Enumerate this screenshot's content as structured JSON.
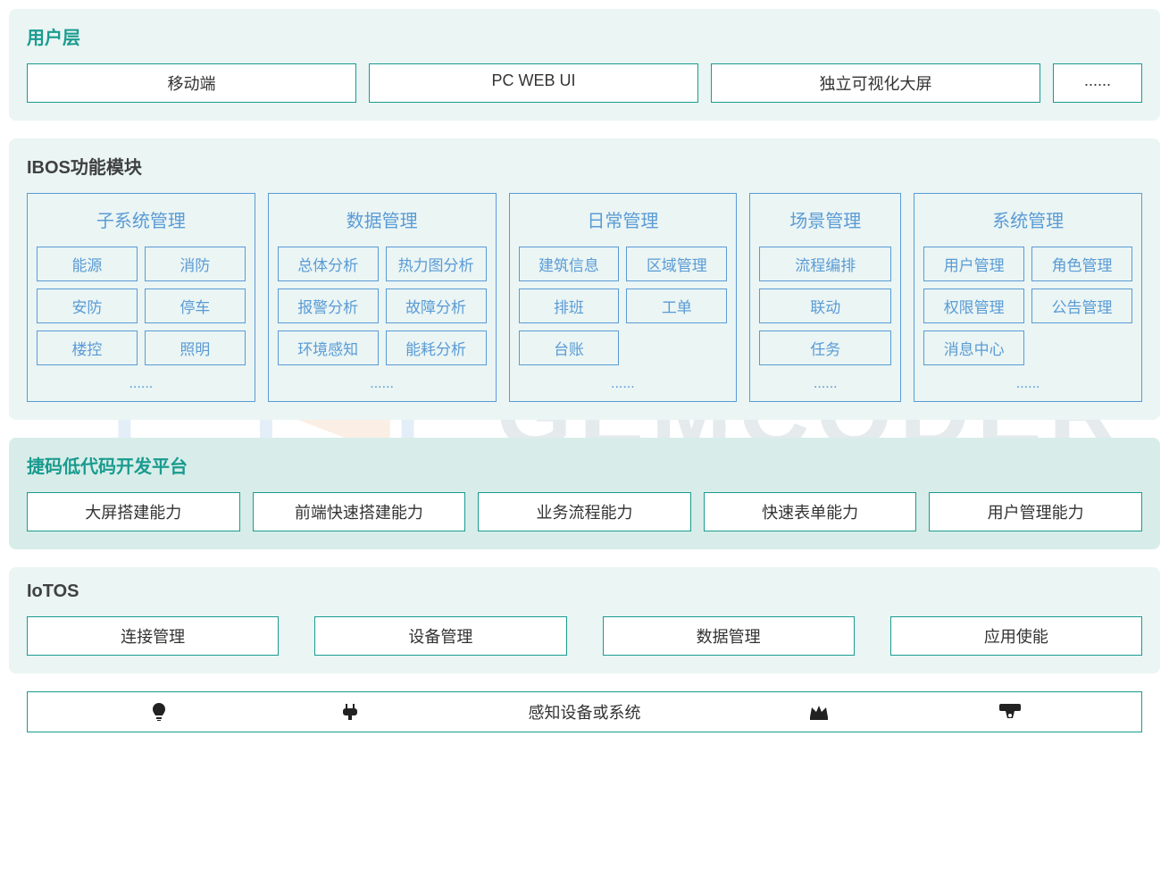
{
  "colors": {
    "layer_bg_light": "#eaf5f4",
    "layer_bg_green": "#d8ede9",
    "accent": "#1a9b8f",
    "border_blue": "#5b9bd5",
    "text_dark": "#333333",
    "title_green": "#1a9b8f",
    "title_dark": "#404040",
    "watermark_blue": "#4a90d9",
    "watermark_orange": "#e8833a"
  },
  "layers": {
    "user": {
      "title": "用户层",
      "title_color": "#1a9b8f",
      "bg": "#eaf5f4",
      "border": "#1a9b8f",
      "items": [
        "移动端",
        "PC WEB UI",
        "独立可视化大屏",
        "......"
      ]
    },
    "ibos": {
      "title": "IBOS功能模块",
      "title_color": "#404040",
      "bg": "#eaf5f4",
      "border": "#5b9bd5",
      "modules": [
        {
          "title": "子系统管理",
          "rows": [
            [
              "能源",
              "消防"
            ],
            [
              "安防",
              "停车"
            ],
            [
              "楼控",
              "照明"
            ]
          ],
          "ellipsis": "......"
        },
        {
          "title": "数据管理",
          "rows": [
            [
              "总体分析",
              "热力图分析"
            ],
            [
              "报警分析",
              "故障分析"
            ],
            [
              "环境感知",
              "能耗分析"
            ]
          ],
          "ellipsis": "......"
        },
        {
          "title": "日常管理",
          "rows": [
            [
              "建筑信息",
              "区域管理"
            ],
            [
              "排班",
              "工单"
            ],
            [
              "台账",
              ""
            ]
          ],
          "ellipsis": "......"
        },
        {
          "title": "场景管理",
          "narrow": true,
          "rows": [
            [
              "流程编排"
            ],
            [
              "联动"
            ],
            [
              "任务"
            ]
          ],
          "ellipsis": "......"
        },
        {
          "title": "系统管理",
          "rows": [
            [
              "用户管理",
              "角色管理"
            ],
            [
              "权限管理",
              "公告管理"
            ],
            [
              "消息中心",
              ""
            ]
          ],
          "ellipsis": "......"
        }
      ]
    },
    "lowcode": {
      "title": "捷码低代码开发平台",
      "title_color": "#1a9b8f",
      "bg": "#d8ede9",
      "border": "#1a9b8f",
      "items": [
        "大屏搭建能力",
        "前端快速搭建能力",
        "业务流程能力",
        "快速表单能力",
        "用户管理能力"
      ]
    },
    "iotos": {
      "title": "IoTOS",
      "title_color": "#404040",
      "bg": "#eaf5f4",
      "border": "#1a9b8f",
      "items": [
        "连接管理",
        "设备管理",
        "数据管理",
        "应用使能"
      ]
    }
  },
  "footer": {
    "label": "感知设备或系统",
    "border": "#1a9b8f",
    "icons": [
      "bulb",
      "plug",
      "crown",
      "camera"
    ]
  },
  "watermark_text": "GEMCODER"
}
